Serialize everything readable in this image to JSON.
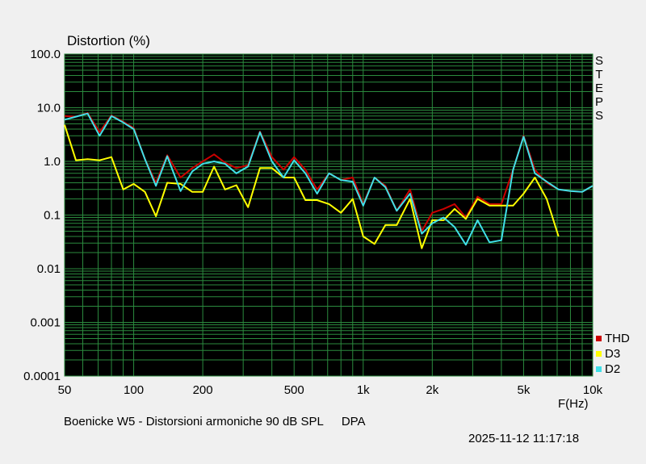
{
  "chart_data": {
    "type": "line",
    "title": "Distortion (%)",
    "xlabel": "F(Hz)",
    "xscale": "log",
    "yscale": "log",
    "xlim": [
      50,
      10000
    ],
    "ylim": [
      0.0001,
      100
    ],
    "x_ticks": [
      {
        "v": 50,
        "label": "50"
      },
      {
        "v": 100,
        "label": "100"
      },
      {
        "v": 200,
        "label": "200"
      },
      {
        "v": 500,
        "label": "500"
      },
      {
        "v": 1000,
        "label": "1k"
      },
      {
        "v": 2000,
        "label": "2k"
      },
      {
        "v": 5000,
        "label": "5k"
      },
      {
        "v": 10000,
        "label": "10k"
      }
    ],
    "y_ticks": [
      {
        "v": 100,
        "label": "100.0"
      },
      {
        "v": 10,
        "label": "10.0"
      },
      {
        "v": 1,
        "label": "1.0"
      },
      {
        "v": 0.1,
        "label": "0.1"
      },
      {
        "v": 0.01,
        "label": "0.01"
      },
      {
        "v": 0.001,
        "label": "0.001"
      },
      {
        "v": 0.0001,
        "label": "0.0001"
      }
    ],
    "grid": true,
    "background": "#000000",
    "grid_color": "#2b8a3e",
    "legend_position": "bottom-right",
    "series": [
      {
        "name": "THD",
        "color": "#cc0000",
        "points": [
          [
            50,
            7.0
          ],
          [
            56,
            6.8
          ],
          [
            63,
            8.0
          ],
          [
            71,
            3.5
          ],
          [
            80,
            7.2
          ],
          [
            90,
            5.5
          ],
          [
            100,
            4.2
          ],
          [
            112,
            1.1
          ],
          [
            125,
            0.4
          ],
          [
            140,
            1.3
          ],
          [
            160,
            0.5
          ],
          [
            180,
            0.75
          ],
          [
            200,
            1.0
          ],
          [
            224,
            1.35
          ],
          [
            250,
            0.95
          ],
          [
            280,
            0.75
          ],
          [
            315,
            0.85
          ],
          [
            355,
            3.6
          ],
          [
            400,
            1.2
          ],
          [
            450,
            0.7
          ],
          [
            500,
            1.2
          ],
          [
            560,
            0.7
          ],
          [
            630,
            0.3
          ],
          [
            710,
            0.6
          ],
          [
            800,
            0.45
          ],
          [
            900,
            0.5
          ],
          [
            1000,
            0.16
          ],
          [
            1120,
            0.5
          ],
          [
            1250,
            0.35
          ],
          [
            1400,
            0.12
          ],
          [
            1600,
            0.3
          ],
          [
            1800,
            0.05
          ],
          [
            2000,
            0.11
          ],
          [
            2240,
            0.13
          ],
          [
            2500,
            0.16
          ],
          [
            2800,
            0.09
          ],
          [
            3150,
            0.22
          ],
          [
            3550,
            0.16
          ],
          [
            4000,
            0.16
          ],
          [
            4500,
            0.7
          ],
          [
            5000,
            3.0
          ],
          [
            5600,
            0.7
          ],
          [
            6300,
            0.4
          ],
          [
            7100,
            0.3
          ],
          [
            8000,
            0.28
          ],
          [
            9000,
            0.27
          ],
          [
            10000,
            0.35
          ]
        ]
      },
      {
        "name": "D3",
        "color": "#ffff00",
        "points": [
          [
            50,
            4.8
          ],
          [
            56,
            1.05
          ],
          [
            63,
            1.1
          ],
          [
            71,
            1.05
          ],
          [
            80,
            1.2
          ],
          [
            90,
            0.3
          ],
          [
            100,
            0.38
          ],
          [
            112,
            0.27
          ],
          [
            125,
            0.095
          ],
          [
            140,
            0.4
          ],
          [
            160,
            0.38
          ],
          [
            180,
            0.27
          ],
          [
            200,
            0.27
          ],
          [
            224,
            0.8
          ],
          [
            250,
            0.3
          ],
          [
            280,
            0.36
          ],
          [
            315,
            0.14
          ],
          [
            355,
            0.75
          ],
          [
            400,
            0.75
          ],
          [
            450,
            0.5
          ],
          [
            500,
            0.5
          ],
          [
            560,
            0.19
          ],
          [
            630,
            0.19
          ],
          [
            710,
            0.16
          ],
          [
            800,
            0.11
          ],
          [
            900,
            0.2
          ],
          [
            1000,
            0.04
          ],
          [
            1120,
            0.029
          ],
          [
            1250,
            0.065
          ],
          [
            1400,
            0.065
          ],
          [
            1600,
            0.2
          ],
          [
            1800,
            0.024
          ],
          [
            2000,
            0.08
          ],
          [
            2240,
            0.08
          ],
          [
            2500,
            0.13
          ],
          [
            2800,
            0.085
          ],
          [
            3150,
            0.2
          ],
          [
            3550,
            0.15
          ],
          [
            4000,
            0.15
          ],
          [
            4500,
            0.15
          ],
          [
            5000,
            0.25
          ],
          [
            5600,
            0.5
          ],
          [
            6300,
            0.2
          ],
          [
            7100,
            0.04
          ]
        ]
      },
      {
        "name": "D2",
        "color": "#40e0e8",
        "points": [
          [
            50,
            6.0
          ],
          [
            56,
            6.8
          ],
          [
            63,
            7.8
          ],
          [
            71,
            3.0
          ],
          [
            80,
            7.0
          ],
          [
            90,
            5.3
          ],
          [
            100,
            4.0
          ],
          [
            112,
            1.1
          ],
          [
            125,
            0.35
          ],
          [
            140,
            1.25
          ],
          [
            160,
            0.28
          ],
          [
            180,
            0.65
          ],
          [
            200,
            0.9
          ],
          [
            224,
            1.0
          ],
          [
            250,
            0.9
          ],
          [
            280,
            0.6
          ],
          [
            315,
            0.8
          ],
          [
            355,
            3.5
          ],
          [
            400,
            1.0
          ],
          [
            450,
            0.5
          ],
          [
            500,
            1.05
          ],
          [
            560,
            0.6
          ],
          [
            630,
            0.25
          ],
          [
            710,
            0.6
          ],
          [
            800,
            0.45
          ],
          [
            900,
            0.42
          ],
          [
            1000,
            0.15
          ],
          [
            1120,
            0.5
          ],
          [
            1250,
            0.33
          ],
          [
            1400,
            0.12
          ],
          [
            1600,
            0.25
          ],
          [
            1800,
            0.045
          ],
          [
            2000,
            0.07
          ],
          [
            2240,
            0.09
          ],
          [
            2500,
            0.06
          ],
          [
            2800,
            0.028
          ],
          [
            3150,
            0.08
          ],
          [
            3550,
            0.031
          ],
          [
            4000,
            0.034
          ],
          [
            4500,
            0.7
          ],
          [
            5000,
            2.9
          ],
          [
            5600,
            0.6
          ],
          [
            6300,
            0.42
          ],
          [
            7100,
            0.3
          ],
          [
            8000,
            0.28
          ],
          [
            9000,
            0.27
          ],
          [
            10000,
            0.35
          ]
        ]
      }
    ]
  },
  "right_label": "STEPS",
  "caption": {
    "text": "Boenicke W5 - Distorsioni armoniche 90 dB SPL",
    "source": "DPA"
  },
  "timestamp": "2025-11-12 11:17:18"
}
